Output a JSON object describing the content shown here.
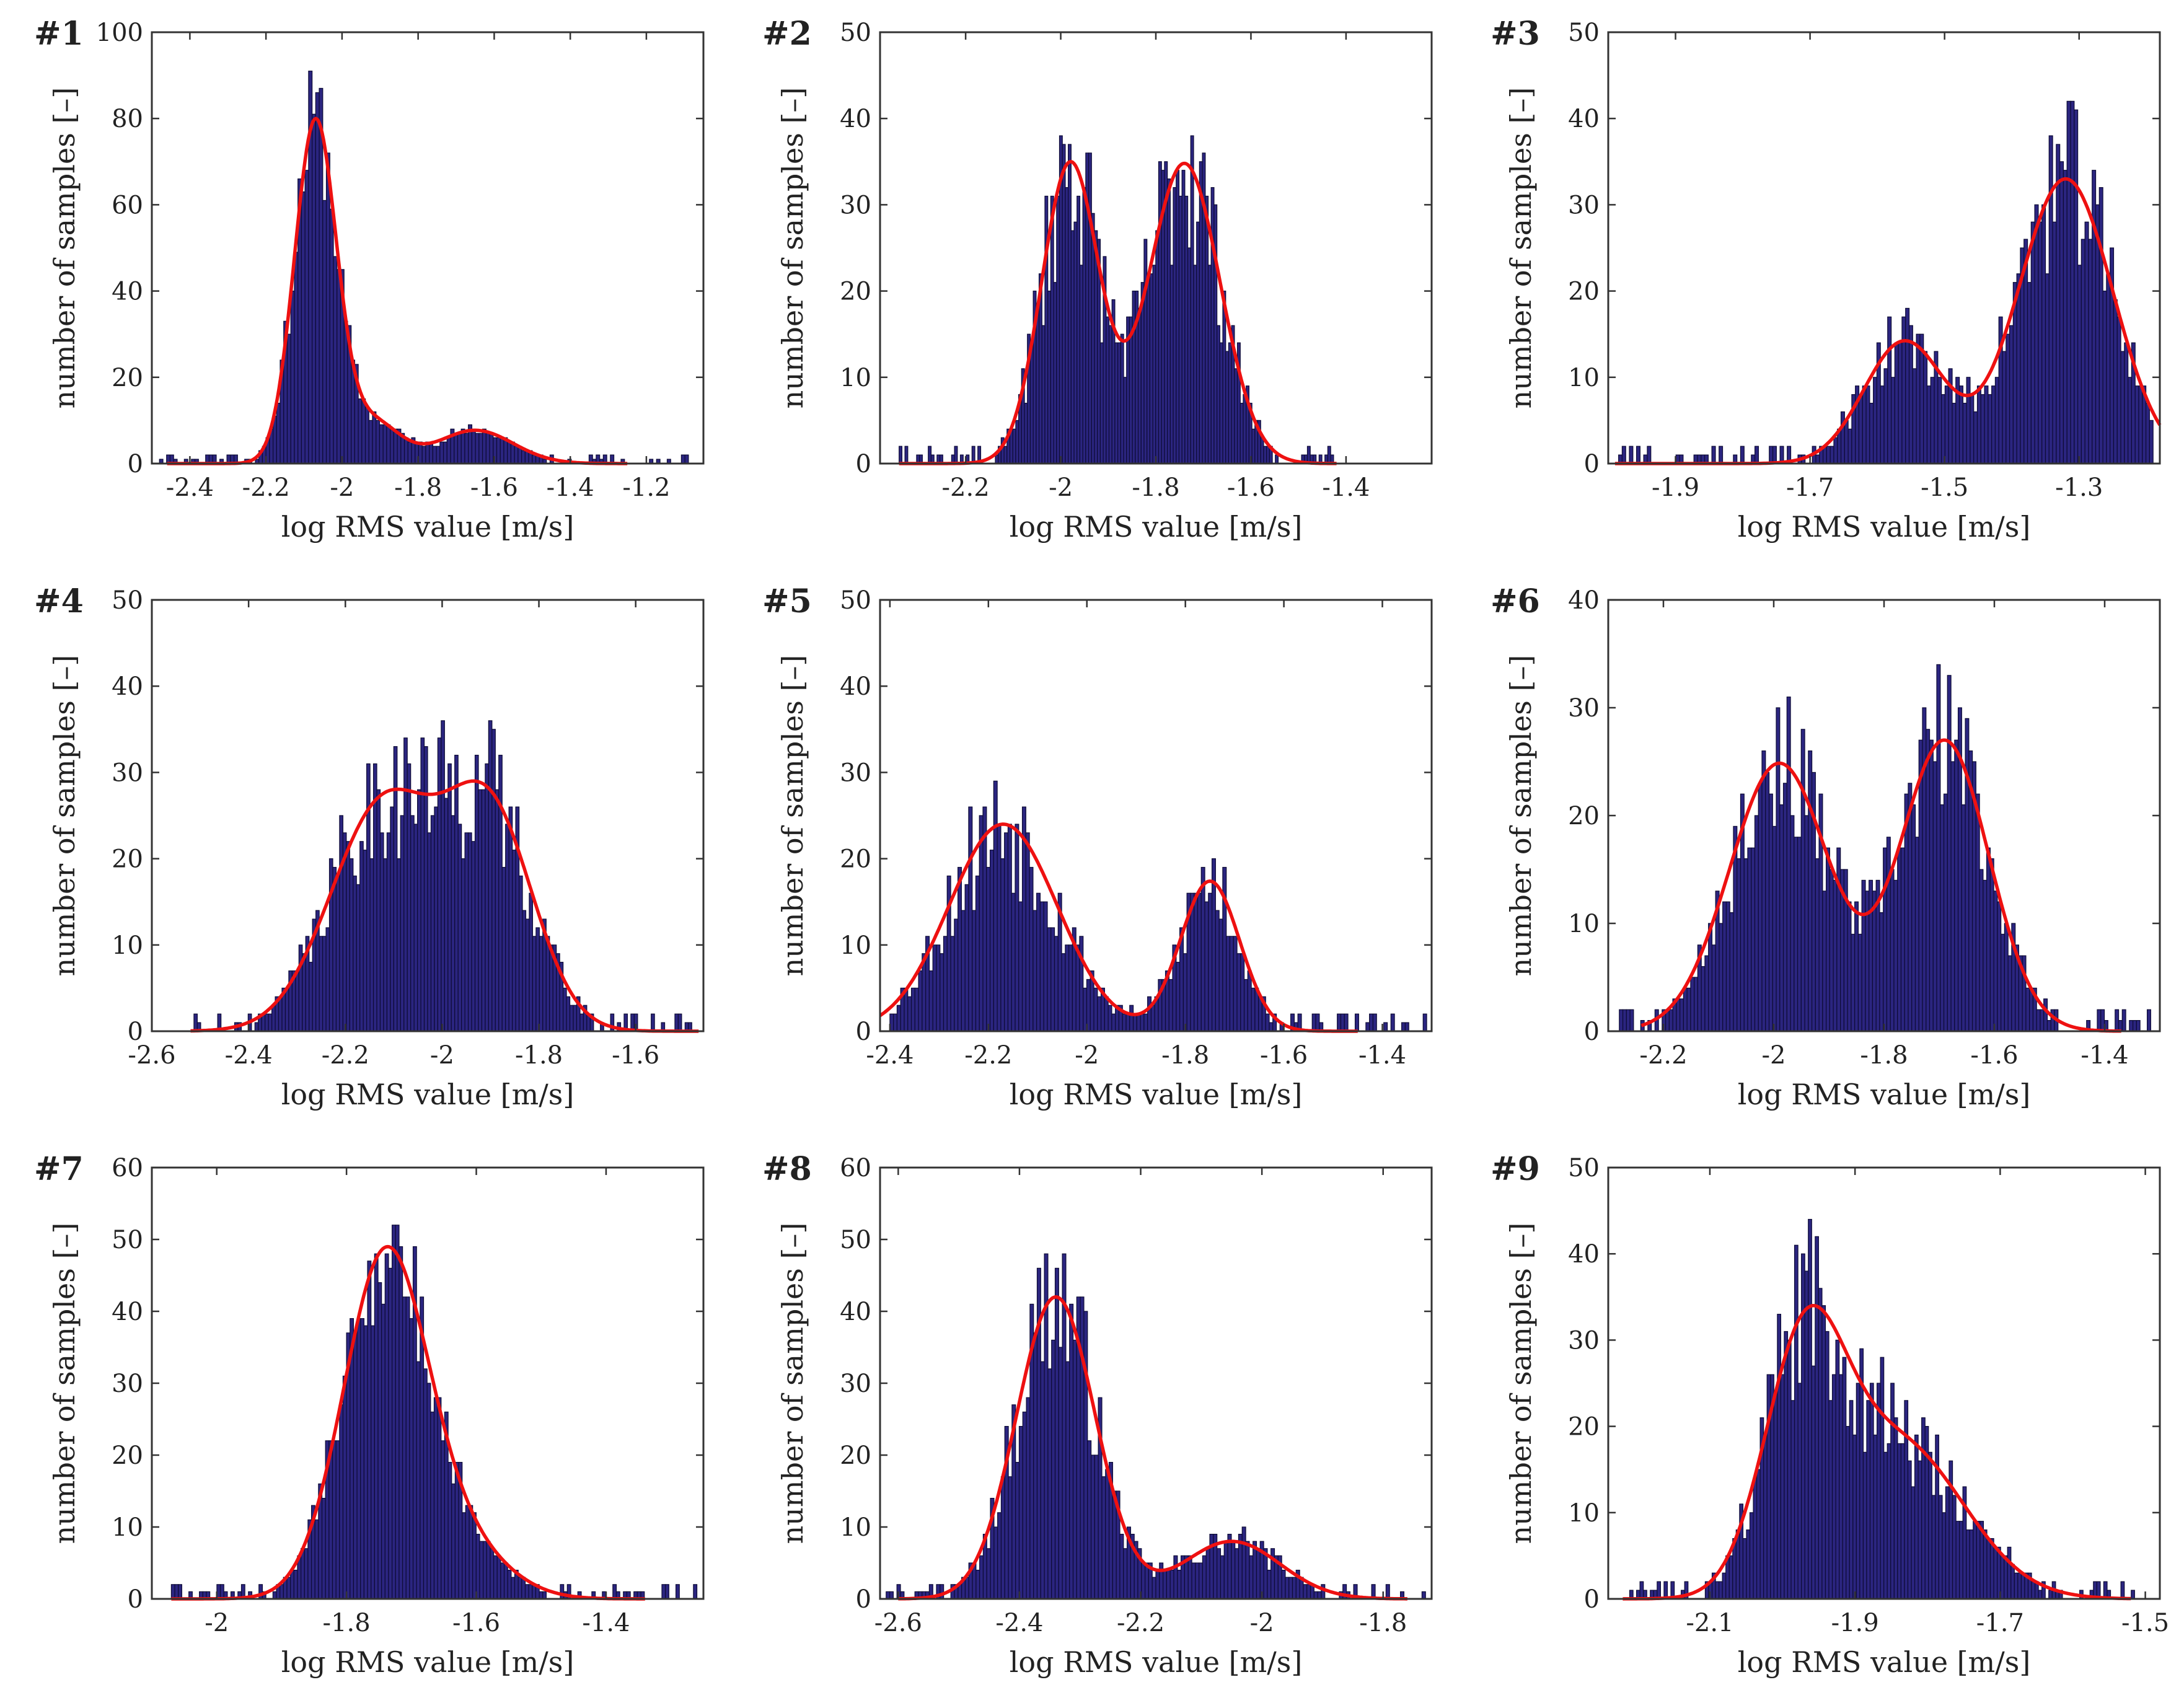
{
  "colors": {
    "bar_fill": "#2b2580",
    "bar_stroke": "#0d0b35",
    "curve": "#ee1111",
    "axis": "#333333"
  },
  "chart_data": [
    {
      "type": "bar",
      "id": "#1",
      "xlabel": "log RMS value [m/s]",
      "ylabel": "number of samples [–]",
      "xlim": [
        -2.5,
        -1.05
      ],
      "ylim": [
        0,
        100
      ],
      "xticks": [
        -2.4,
        -2.2,
        -2,
        -1.8,
        -1.6,
        -1.4,
        -1.2
      ],
      "xticklabels": [
        "-2.4",
        "-2.2",
        "-2",
        "-1.8",
        "-1.6",
        "-1.4",
        "-1.2"
      ],
      "yticks": [
        0,
        20,
        40,
        60,
        80,
        100
      ],
      "yticklabels": [
        "0",
        "20",
        "40",
        "60",
        "80",
        "100"
      ],
      "bar_range": [
        -2.48,
        -1.08
      ],
      "fit_range": [
        -2.46,
        -1.25
      ],
      "components": [
        {
          "weight": 0.82,
          "mean": -2.07,
          "sd": 0.055
        },
        {
          "weight": 0.1,
          "mean": -1.92,
          "sd": 0.07
        },
        {
          "weight": 0.08,
          "mean": -1.65,
          "sd": 0.1
        }
      ],
      "peak": 80,
      "seed": 11,
      "noise": 0.18
    },
    {
      "type": "bar",
      "id": "#2",
      "xlabel": "log RMS value [m/s]",
      "ylabel": "number of samples [–]",
      "xlim": [
        -2.38,
        -1.22
      ],
      "ylim": [
        0,
        50
      ],
      "xticks": [
        -2.2,
        -2,
        -1.8,
        -1.6,
        -1.4
      ],
      "xticklabels": [
        "-2.2",
        "-2",
        "-1.8",
        "-1.6",
        "-1.4"
      ],
      "yticks": [
        0,
        10,
        20,
        30,
        40,
        50
      ],
      "yticklabels": [
        "0",
        "10",
        "20",
        "30",
        "40",
        "50"
      ],
      "bar_range": [
        -2.34,
        -1.42
      ],
      "fit_range": [
        -2.34,
        -1.42
      ],
      "components": [
        {
          "weight": 0.5,
          "mean": -1.98,
          "sd": 0.06
        },
        {
          "weight": 0.5,
          "mean": -1.74,
          "sd": 0.075
        }
      ],
      "peak": 35,
      "seed": 23,
      "noise": 0.32
    },
    {
      "type": "bar",
      "id": "#3",
      "xlabel": "log RMS value [m/s]",
      "ylabel": "number of samples [–]",
      "xlim": [
        -2.0,
        -1.18
      ],
      "ylim": [
        0,
        50
      ],
      "xticks": [
        -1.9,
        -1.7,
        -1.5,
        -1.3
      ],
      "xticklabels": [
        "-1.9",
        "-1.7",
        "-1.5",
        "-1.3"
      ],
      "yticks": [
        0,
        10,
        20,
        30,
        40,
        50
      ],
      "yticklabels": [
        "0",
        "10",
        "20",
        "30",
        "40",
        "50"
      ],
      "bar_range": [
        -1.99,
        -1.19
      ],
      "fit_range": [
        -1.99,
        -1.18
      ],
      "components": [
        {
          "weight": 0.3,
          "mean": -1.56,
          "sd": 0.06
        },
        {
          "weight": 0.7,
          "mean": -1.32,
          "sd": 0.07
        }
      ],
      "peak": 33,
      "seed": 37,
      "noise": 0.3
    },
    {
      "type": "bar",
      "id": "#4",
      "xlabel": "log RMS value [m/s]",
      "ylabel": "number of samples [–]",
      "xlim": [
        -2.6,
        -1.46
      ],
      "ylim": [
        0,
        50
      ],
      "xticks": [
        -2.6,
        -2.4,
        -2.2,
        -2,
        -1.8,
        -1.6
      ],
      "xticklabels": [
        "-2.6",
        "-2.4",
        "-2.2",
        "-2",
        "-1.8",
        "-1.6"
      ],
      "yticks": [
        0,
        10,
        20,
        30,
        40,
        50
      ],
      "yticklabels": [
        "0",
        "10",
        "20",
        "30",
        "40",
        "50"
      ],
      "bar_range": [
        -2.52,
        -1.47
      ],
      "fit_range": [
        -2.52,
        -1.47
      ],
      "components": [
        {
          "weight": 0.52,
          "mean": -2.12,
          "sd": 0.11
        },
        {
          "weight": 0.48,
          "mean": -1.9,
          "sd": 0.09
        }
      ],
      "peak": 29,
      "seed": 41,
      "noise": 0.3
    },
    {
      "type": "bar",
      "id": "#5",
      "xlabel": "log RMS value [m/s]",
      "ylabel": "number of samples [–]",
      "xlim": [
        -2.42,
        -1.3
      ],
      "ylim": [
        0,
        50
      ],
      "xticks": [
        -2.4,
        -2.2,
        -2,
        -1.8,
        -1.6,
        -1.4
      ],
      "xticklabels": [
        "-2.4",
        "-2.2",
        "-2",
        "-1.8",
        "-1.6",
        "-1.4"
      ],
      "yticks": [
        0,
        10,
        20,
        30,
        40,
        50
      ],
      "yticklabels": [
        "0",
        "10",
        "20",
        "30",
        "40",
        "50"
      ],
      "bar_range": [
        -2.4,
        -1.31
      ],
      "fit_range": [
        -2.42,
        -1.45
      ],
      "components": [
        {
          "weight": 0.58,
          "mean": -2.17,
          "sd": 0.11
        },
        {
          "weight": 0.42,
          "mean": -1.75,
          "sd": 0.06
        }
      ],
      "peak": 24,
      "seed": 53,
      "noise": 0.34
    },
    {
      "type": "bar",
      "id": "#6",
      "xlabel": "log RMS value [m/s]",
      "ylabel": "number of samples [–]",
      "xlim": [
        -2.3,
        -1.3
      ],
      "ylim": [
        0,
        40
      ],
      "xticks": [
        -2.2,
        -2,
        -1.8,
        -1.6,
        -1.4
      ],
      "xticklabels": [
        "-2.2",
        "-2",
        "-1.8",
        "-1.6",
        "-1.4"
      ],
      "yticks": [
        0,
        10,
        20,
        30,
        40
      ],
      "yticklabels": [
        "0",
        "10",
        "20",
        "30",
        "40"
      ],
      "bar_range": [
        -2.28,
        -1.31
      ],
      "fit_range": [
        -2.24,
        -1.37
      ],
      "components": [
        {
          "weight": 0.48,
          "mean": -1.99,
          "sd": 0.09
        },
        {
          "weight": 0.52,
          "mean": -1.69,
          "sd": 0.08
        }
      ],
      "peak": 27,
      "seed": 67,
      "noise": 0.28
    },
    {
      "type": "bar",
      "id": "#7",
      "xlabel": "log RMS value [m/s]",
      "ylabel": "number of samples [–]",
      "xlim": [
        -2.1,
        -1.25
      ],
      "ylim": [
        0,
        60
      ],
      "xticks": [
        -2,
        -1.8,
        -1.6,
        -1.4
      ],
      "xticklabels": [
        "-2",
        "-1.8",
        "-1.6",
        "-1.4"
      ],
      "yticks": [
        0,
        10,
        20,
        30,
        40,
        50,
        60
      ],
      "yticklabels": [
        "0",
        "10",
        "20",
        "30",
        "40",
        "50",
        "60"
      ],
      "bar_range": [
        -2.07,
        -1.26
      ],
      "fit_range": [
        -2.07,
        -1.34
      ],
      "components": [
        {
          "weight": 0.88,
          "mean": -1.74,
          "sd": 0.065
        },
        {
          "weight": 0.12,
          "mean": -1.62,
          "sd": 0.07
        }
      ],
      "peak": 49,
      "seed": 79,
      "noise": 0.2
    },
    {
      "type": "bar",
      "id": "#8",
      "xlabel": "log RMS value [m/s]",
      "ylabel": "number of samples [–]",
      "xlim": [
        -2.63,
        -1.72
      ],
      "ylim": [
        0,
        60
      ],
      "xticks": [
        -2.6,
        -2.4,
        -2.2,
        -2,
        -1.8
      ],
      "xticklabels": [
        "-2.6",
        "-2.4",
        "-2.2",
        "-2",
        "-1.8"
      ],
      "yticks": [
        0,
        10,
        20,
        30,
        40,
        50,
        60
      ],
      "yticklabels": [
        "0",
        "10",
        "20",
        "30",
        "40",
        "50",
        "60"
      ],
      "bar_range": [
        -2.62,
        -1.73
      ],
      "fit_range": [
        -2.6,
        -1.76
      ],
      "components": [
        {
          "weight": 0.84,
          "mean": -2.34,
          "sd": 0.065
        },
        {
          "weight": 0.16,
          "mean": -2.05,
          "sd": 0.08
        }
      ],
      "peak": 42,
      "seed": 97,
      "noise": 0.28
    },
    {
      "type": "bar",
      "id": "#9",
      "xlabel": "log RMS value [m/s]",
      "ylabel": "number of samples [–]",
      "xlim": [
        -2.24,
        -1.48
      ],
      "ylim": [
        0,
        50
      ],
      "xticks": [
        -2.1,
        -1.9,
        -1.7,
        -1.5
      ],
      "xticklabels": [
        "-2.1",
        "-1.9",
        "-1.7",
        "-1.5"
      ],
      "yticks": [
        0,
        10,
        20,
        30,
        40,
        50
      ],
      "yticklabels": [
        "0",
        "10",
        "20",
        "30",
        "40",
        "50"
      ],
      "bar_range": [
        -2.22,
        -1.51
      ],
      "fit_range": [
        -2.22,
        -1.52
      ],
      "components": [
        {
          "weight": 0.6,
          "mean": -1.97,
          "sd": 0.055
        },
        {
          "weight": 0.4,
          "mean": -1.84,
          "sd": 0.09
        }
      ],
      "peak": 34,
      "seed": 113,
      "noise": 0.3
    }
  ]
}
